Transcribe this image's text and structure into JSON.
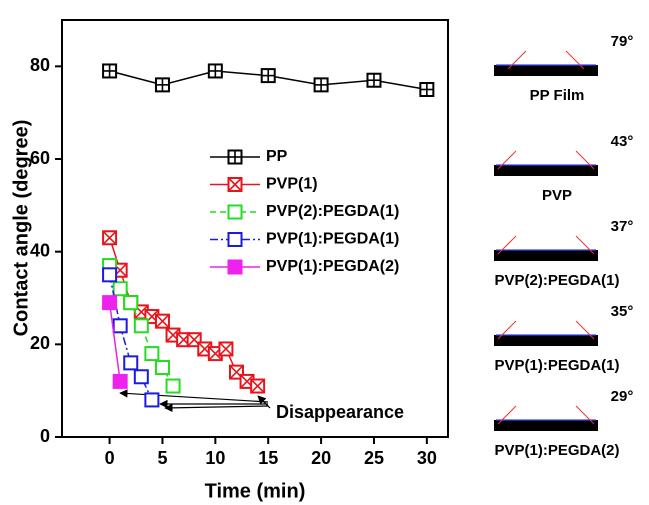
{
  "chart_data": {
    "type": "line",
    "x_label": "Time (min)",
    "y_label": "Contact angle (degree)",
    "xlim": [
      -4.5,
      32
    ],
    "ylim": [
      0,
      90
    ],
    "xticks": [
      0,
      5,
      10,
      15,
      20,
      25,
      30
    ],
    "yticks": [
      0,
      20,
      40,
      60,
      80
    ],
    "annotation": "Disappearance",
    "series": [
      {
        "name": "PP",
        "color": "#000000",
        "marker": "square-plus",
        "linestyle": "solid",
        "x": [
          0,
          5,
          10,
          15,
          20,
          25,
          30
        ],
        "values": [
          79,
          76,
          79,
          78,
          76,
          77,
          75
        ]
      },
      {
        "name": "PVP(1)",
        "color": "#e8141c",
        "marker": "square-x",
        "linestyle": "solid",
        "x": [
          0,
          1,
          2,
          3,
          4,
          5,
          6,
          7,
          8,
          9,
          10,
          11,
          12,
          13,
          14
        ],
        "values": [
          43,
          36,
          29,
          27,
          26,
          25,
          22,
          21,
          21,
          19,
          18,
          19,
          14,
          12,
          11
        ]
      },
      {
        "name": "PVP(2):PEGDA(1)",
        "color": "#22dd22",
        "marker": "square-open",
        "linestyle": "dashed",
        "x": [
          0,
          1,
          2,
          3,
          4,
          5,
          6
        ],
        "values": [
          37,
          32,
          29,
          24,
          18,
          15,
          11
        ]
      },
      {
        "name": "PVP(1):PEGDA(1)",
        "color": "#1a1ae0",
        "marker": "square-open",
        "linestyle": "dashdot",
        "x": [
          0,
          1,
          2,
          3,
          4
        ],
        "values": [
          35,
          24,
          16,
          13,
          8
        ]
      },
      {
        "name": "PVP(1):PEGDA(2)",
        "color": "#ee22ee",
        "marker": "square-filled",
        "linestyle": "solid",
        "x": [
          0,
          1
        ],
        "values": [
          29,
          12
        ]
      }
    ]
  },
  "side_images": [
    {
      "angle": "79°",
      "label": "PP Film"
    },
    {
      "angle": "43°",
      "label": "PVP"
    },
    {
      "angle": "37°",
      "label": "PVP(2):PEGDA(1)"
    },
    {
      "angle": "35°",
      "label": "PVP(1):PEGDA(1)"
    },
    {
      "angle": "29°",
      "label": "PVP(1):PEGDA(2)"
    }
  ]
}
